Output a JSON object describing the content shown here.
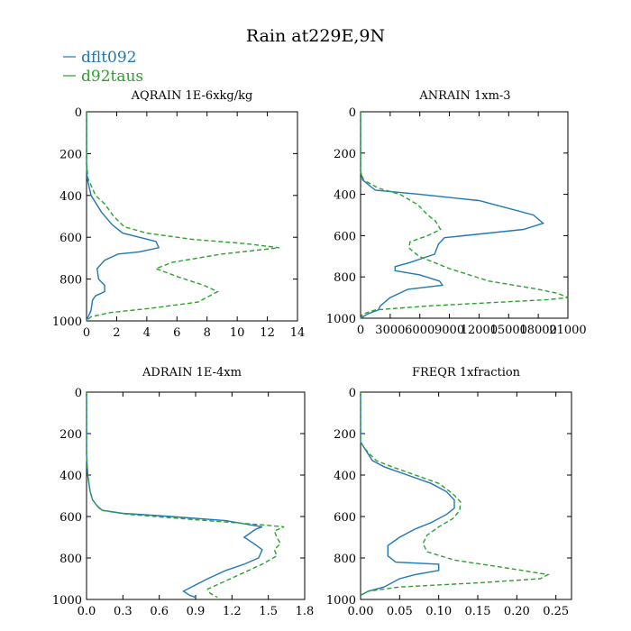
{
  "title": "Rain at229E,9N",
  "legend": [
    {
      "name": "dflt092",
      "color": "#1f77b4",
      "dash": false
    },
    {
      "name": "d92taus",
      "color": "#2ca02c",
      "dash": true
    }
  ],
  "chart_data": [
    {
      "type": "line",
      "title": "AQRAIN  1E-6xkg/kg",
      "xlim": [
        0,
        14
      ],
      "ylim": [
        1000,
        0
      ],
      "xticks": [
        0,
        2,
        4,
        6,
        8,
        10,
        12,
        14
      ],
      "xtick_labels": [
        "0",
        "2",
        "4",
        "6",
        "8",
        "10",
        "12",
        "14"
      ],
      "yticks": [
        0,
        200,
        400,
        600,
        800,
        1000
      ],
      "ytick_labels": [
        "0",
        "200",
        "400",
        "600",
        "800",
        "1000"
      ],
      "series": [
        {
          "name": "dflt092",
          "points": [
            [
              0,
              0
            ],
            [
              0,
              250
            ],
            [
              0.05,
              320
            ],
            [
              0.3,
              400
            ],
            [
              1,
              480
            ],
            [
              1.7,
              540
            ],
            [
              2.4,
              580
            ],
            [
              3.5,
              600
            ],
            [
              4.6,
              620
            ],
            [
              4.8,
              650
            ],
            [
              3.5,
              670
            ],
            [
              2.1,
              680
            ],
            [
              1.2,
              710
            ],
            [
              0.7,
              750
            ],
            [
              0.8,
              800
            ],
            [
              1.2,
              830
            ],
            [
              1.2,
              860
            ],
            [
              0.6,
              880
            ],
            [
              0.4,
              900
            ],
            [
              0.3,
              950
            ],
            [
              0.05,
              990
            ],
            [
              0,
              1000
            ]
          ]
        },
        {
          "name": "d92taus",
          "points": [
            [
              0,
              0
            ],
            [
              0,
              250
            ],
            [
              0.1,
              320
            ],
            [
              0.6,
              400
            ],
            [
              1.2,
              440
            ],
            [
              1.8,
              500
            ],
            [
              2.5,
              550
            ],
            [
              4,
              580
            ],
            [
              7,
              610
            ],
            [
              10.5,
              630
            ],
            [
              12.8,
              650
            ],
            [
              9,
              680
            ],
            [
              5.7,
              720
            ],
            [
              4.6,
              750
            ],
            [
              6.1,
              790
            ],
            [
              7.8,
              830
            ],
            [
              8.7,
              860
            ],
            [
              7.4,
              910
            ],
            [
              4.2,
              940
            ],
            [
              1.6,
              960
            ],
            [
              0.3,
              980
            ],
            [
              0,
              1000
            ]
          ]
        }
      ]
    },
    {
      "type": "line",
      "title": "ANRAIN  1xm-3",
      "xlim": [
        0,
        21000
      ],
      "ylim": [
        1000,
        0
      ],
      "xticks": [
        0,
        3000,
        6000,
        9000,
        12000,
        15000,
        18000,
        21000
      ],
      "xtick_labels": [
        "0",
        "3000",
        "6000",
        "9000",
        "12000",
        "15000",
        "18000",
        "21000"
      ],
      "yticks": [
        0,
        200,
        400,
        600,
        800,
        1000
      ],
      "ytick_labels": [
        "0",
        "200",
        "400",
        "600",
        "800",
        "1000"
      ],
      "series": [
        {
          "name": "dflt092",
          "points": [
            [
              0,
              0
            ],
            [
              0,
              290
            ],
            [
              200,
              330
            ],
            [
              1500,
              380
            ],
            [
              6000,
              400
            ],
            [
              12000,
              430
            ],
            [
              17500,
              500
            ],
            [
              18500,
              540
            ],
            [
              16500,
              570
            ],
            [
              8500,
              610
            ],
            [
              7900,
              640
            ],
            [
              7500,
              690
            ],
            [
              5000,
              730
            ],
            [
              3500,
              750
            ],
            [
              3500,
              770
            ],
            [
              6000,
              790
            ],
            [
              8000,
              820
            ],
            [
              8300,
              840
            ],
            [
              4800,
              860
            ],
            [
              3000,
              900
            ],
            [
              2000,
              940
            ],
            [
              1800,
              960
            ],
            [
              700,
              980
            ],
            [
              0,
              1000
            ]
          ]
        },
        {
          "name": "d92taus",
          "points": [
            [
              0,
              0
            ],
            [
              0,
              290
            ],
            [
              300,
              330
            ],
            [
              1800,
              370
            ],
            [
              4000,
              400
            ],
            [
              5800,
              450
            ],
            [
              6800,
              500
            ],
            [
              7600,
              530
            ],
            [
              8100,
              570
            ],
            [
              6800,
              600
            ],
            [
              5000,
              630
            ],
            [
              4900,
              660
            ],
            [
              5900,
              700
            ],
            [
              9000,
              760
            ],
            [
              13000,
              820
            ],
            [
              18000,
              860
            ],
            [
              20000,
              880
            ],
            [
              21000,
              900
            ],
            [
              19000,
              910
            ],
            [
              7000,
              940
            ],
            [
              1500,
              960
            ],
            [
              200,
              980
            ],
            [
              0,
              1000
            ]
          ]
        }
      ]
    },
    {
      "type": "line",
      "title": "ADRAIN  1E-4xm",
      "xlim": [
        0,
        1.8
      ],
      "ylim": [
        1000,
        0
      ],
      "xticks": [
        0,
        0.3,
        0.6,
        0.9,
        1.2,
        1.5,
        1.8
      ],
      "xtick_labels": [
        "0.0",
        "0.3",
        "0.6",
        "0.9",
        "1.2",
        "1.5",
        "1.8"
      ],
      "yticks": [
        0,
        200,
        400,
        600,
        800,
        1000
      ],
      "ytick_labels": [
        "0",
        "200",
        "400",
        "600",
        "800",
        "1000"
      ],
      "series": [
        {
          "name": "dflt092",
          "points": [
            [
              0,
              0
            ],
            [
              0,
              300
            ],
            [
              0.01,
              400
            ],
            [
              0.03,
              480
            ],
            [
              0.05,
              520
            ],
            [
              0.09,
              550
            ],
            [
              0.13,
              570
            ],
            [
              0.3,
              585
            ],
            [
              0.7,
              600
            ],
            [
              1.15,
              620
            ],
            [
              1.35,
              640
            ],
            [
              1.45,
              650
            ],
            [
              1.4,
              660
            ],
            [
              1.3,
              700
            ],
            [
              1.38,
              730
            ],
            [
              1.45,
              760
            ],
            [
              1.42,
              800
            ],
            [
              1.3,
              830
            ],
            [
              1.15,
              860
            ],
            [
              1.0,
              900
            ],
            [
              0.9,
              930
            ],
            [
              0.8,
              960
            ],
            [
              0.85,
              980
            ],
            [
              0.9,
              990
            ]
          ]
        },
        {
          "name": "d92taus",
          "points": [
            [
              0,
              0
            ],
            [
              0,
              300
            ],
            [
              0.01,
              400
            ],
            [
              0.03,
              480
            ],
            [
              0.05,
              520
            ],
            [
              0.09,
              550
            ],
            [
              0.12,
              570
            ],
            [
              0.35,
              590
            ],
            [
              1.0,
              620
            ],
            [
              1.45,
              640
            ],
            [
              1.63,
              650
            ],
            [
              1.55,
              670
            ],
            [
              1.57,
              700
            ],
            [
              1.6,
              730
            ],
            [
              1.55,
              760
            ],
            [
              1.57,
              790
            ],
            [
              1.45,
              830
            ],
            [
              1.3,
              870
            ],
            [
              1.15,
              910
            ],
            [
              1.0,
              950
            ],
            [
              1.02,
              970
            ],
            [
              1.08,
              990
            ]
          ]
        }
      ]
    },
    {
      "type": "line",
      "title": "FREQR  1xfraction",
      "xlim": [
        0,
        0.27
      ],
      "ylim": [
        1000,
        0
      ],
      "xticks": [
        0,
        0.05,
        0.1,
        0.15,
        0.2,
        0.25
      ],
      "xtick_labels": [
        "0.00",
        "0.05",
        "0.10",
        "0.15",
        "0.20",
        "0.25"
      ],
      "yticks": [
        0,
        200,
        400,
        600,
        800,
        1000
      ],
      "ytick_labels": [
        "0",
        "200",
        "400",
        "600",
        "800",
        "1000"
      ],
      "series": [
        {
          "name": "dflt092",
          "points": [
            [
              0,
              0
            ],
            [
              0,
              240
            ],
            [
              0.005,
              270
            ],
            [
              0.01,
              300
            ],
            [
              0.015,
              330
            ],
            [
              0.03,
              360
            ],
            [
              0.06,
              400
            ],
            [
              0.09,
              440
            ],
            [
              0.11,
              480
            ],
            [
              0.12,
              520
            ],
            [
              0.12,
              560
            ],
            [
              0.11,
              590
            ],
            [
              0.09,
              630
            ],
            [
              0.07,
              660
            ],
            [
              0.05,
              700
            ],
            [
              0.035,
              740
            ],
            [
              0.035,
              790
            ],
            [
              0.045,
              820
            ],
            [
              0.1,
              830
            ],
            [
              0.1,
              860
            ],
            [
              0.07,
              880
            ],
            [
              0.05,
              900
            ],
            [
              0.03,
              940
            ],
            [
              0.01,
              960
            ],
            [
              0,
              980
            ]
          ]
        },
        {
          "name": "d92taus",
          "points": [
            [
              0,
              0
            ],
            [
              0,
              240
            ],
            [
              0.005,
              270
            ],
            [
              0.012,
              300
            ],
            [
              0.02,
              330
            ],
            [
              0.04,
              360
            ],
            [
              0.07,
              400
            ],
            [
              0.1,
              440
            ],
            [
              0.118,
              490
            ],
            [
              0.128,
              530
            ],
            [
              0.127,
              570
            ],
            [
              0.118,
              610
            ],
            [
              0.1,
              650
            ],
            [
              0.085,
              690
            ],
            [
              0.08,
              730
            ],
            [
              0.085,
              770
            ],
            [
              0.12,
              810
            ],
            [
              0.19,
              850
            ],
            [
              0.24,
              880
            ],
            [
              0.23,
              900
            ],
            [
              0.15,
              920
            ],
            [
              0.05,
              940
            ],
            [
              0.01,
              960
            ],
            [
              0,
              980
            ]
          ]
        }
      ]
    }
  ]
}
